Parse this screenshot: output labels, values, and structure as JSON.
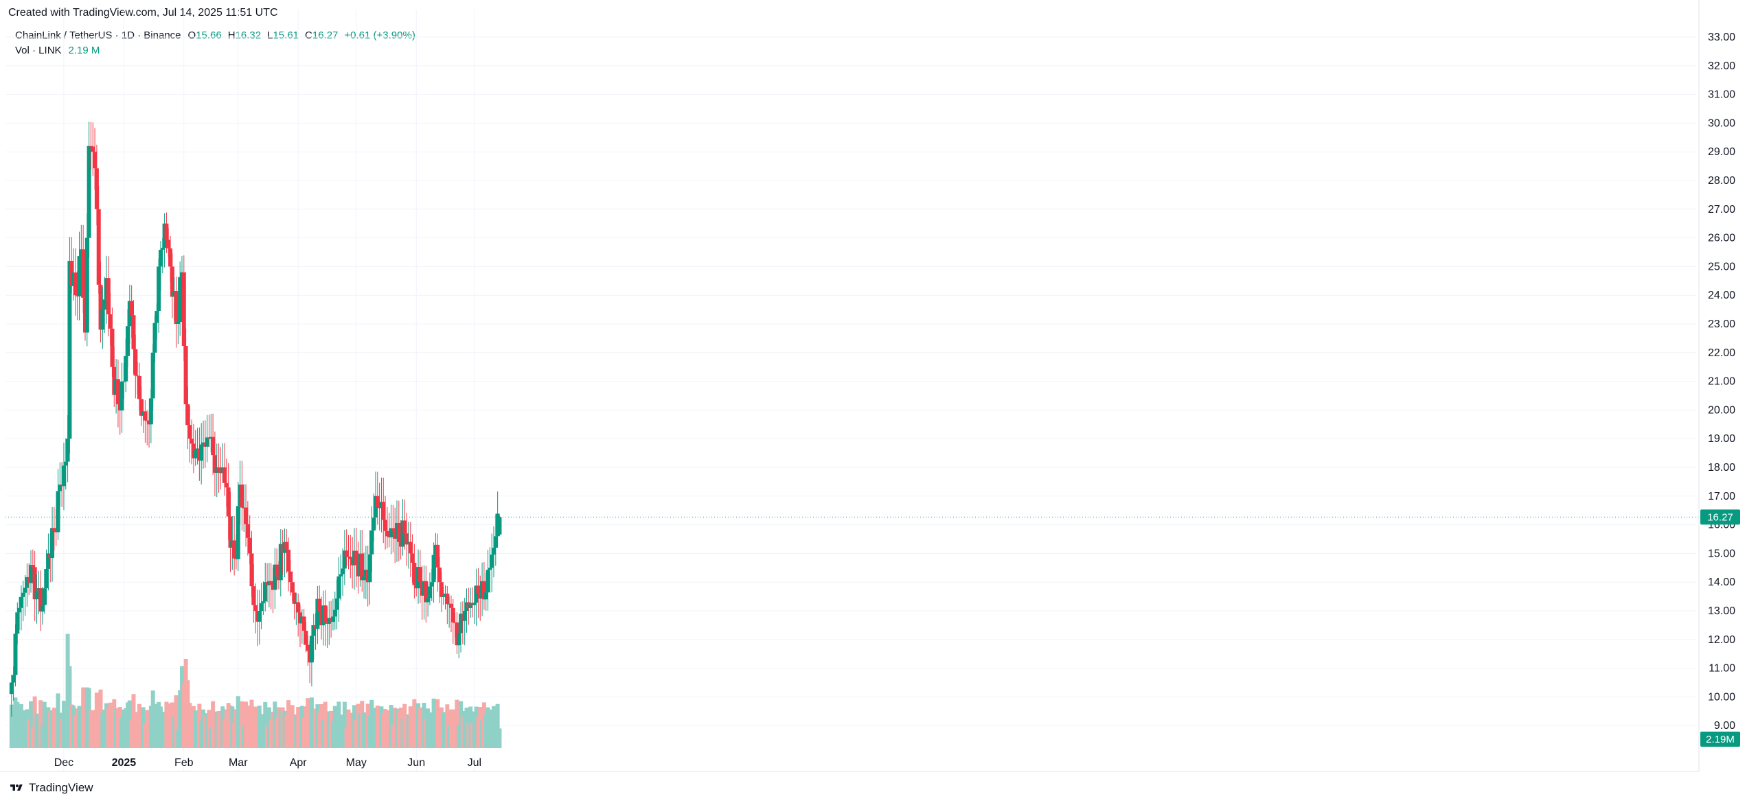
{
  "header": {
    "created": "Created with TradingView.com, Jul 14, 2025 11:51 UTC"
  },
  "legend": {
    "symbol": "ChainLink / TetherUS · 1D · Binance",
    "o_label": "O",
    "o_value": "15.66",
    "h_label": "H",
    "h_value": "16.32",
    "l_label": "L",
    "l_value": "15.61",
    "c_label": "C",
    "c_value": "16.27",
    "change": "+0.61 (+3.90%)",
    "vol_label": "Vol · LINK",
    "vol_value": "2.19 M"
  },
  "footer": {
    "brand": "TradingView",
    "logo_icon": "tradingview-logo-icon"
  },
  "colors": {
    "up": "#089981",
    "down": "#f23645",
    "up_vol": "#8fd1c7",
    "down_vol": "#f7a9a7",
    "grid": "#f0f3fa",
    "text": "#131722"
  },
  "chart_data": {
    "type": "candlestick",
    "title": "ChainLink / TetherUS · 1D · Binance",
    "interval": "1D",
    "exchange": "Binance",
    "x_tick_labels": [
      "Dec",
      "2025",
      "Feb",
      "Mar",
      "Apr",
      "May",
      "Jun",
      "Jul"
    ],
    "x_tick_dates": [
      "2024-12-01",
      "2025-01-01",
      "2025-02-01",
      "2025-03-01",
      "2025-04-01",
      "2025-05-01",
      "2025-06-01",
      "2025-07-01"
    ],
    "y_axis": {
      "min": 9,
      "max": 33,
      "ticks": [
        "9.00",
        "10.00",
        "11.00",
        "12.00",
        "13.00",
        "14.00",
        "15.00",
        "16.00",
        "17.00",
        "18.00",
        "19.00",
        "20.00",
        "21.00",
        "22.00",
        "23.00",
        "24.00",
        "25.00",
        "26.00",
        "27.00",
        "28.00",
        "29.00",
        "30.00",
        "31.00",
        "32.00",
        "33.00"
      ]
    },
    "last_price": "16.27",
    "last_volume": "2.19M",
    "grid": true,
    "approx_close_by_date": [
      [
        "2024-11-04",
        10.5
      ],
      [
        "2024-11-06",
        12.2
      ],
      [
        "2024-11-08",
        13.1
      ],
      [
        "2024-11-11",
        13.8
      ],
      [
        "2024-11-14",
        14.6
      ],
      [
        "2024-11-17",
        13.7
      ],
      [
        "2024-11-20",
        13.2
      ],
      [
        "2024-11-23",
        15.0
      ],
      [
        "2024-11-26",
        15.8
      ],
      [
        "2024-11-29",
        17.4
      ],
      [
        "2024-12-02",
        18.2
      ],
      [
        "2024-12-03",
        19.0
      ],
      [
        "2024-12-04",
        25.2
      ],
      [
        "2024-12-07",
        24.0
      ],
      [
        "2024-12-10",
        25.6
      ],
      [
        "2024-12-12",
        22.7
      ],
      [
        "2024-12-13",
        26.0
      ],
      [
        "2024-12-14",
        29.2
      ],
      [
        "2024-12-16",
        29.0
      ],
      [
        "2024-12-18",
        27.0
      ],
      [
        "2024-12-20",
        22.8
      ],
      [
        "2024-12-23",
        24.6
      ],
      [
        "2024-12-26",
        21.5
      ],
      [
        "2024-12-29",
        20.2
      ],
      [
        "2025-01-01",
        21.0
      ],
      [
        "2025-01-04",
        23.8
      ],
      [
        "2025-01-07",
        21.2
      ],
      [
        "2025-01-10",
        19.8
      ],
      [
        "2025-01-14",
        19.5
      ],
      [
        "2025-01-16",
        22.0
      ],
      [
        "2025-01-19",
        25.0
      ],
      [
        "2025-01-22",
        26.5
      ],
      [
        "2025-01-25",
        25.0
      ],
      [
        "2025-01-28",
        23.0
      ],
      [
        "2025-01-31",
        24.8
      ],
      [
        "2025-02-02",
        20.2
      ],
      [
        "2025-02-04",
        19.0
      ],
      [
        "2025-02-07",
        18.6
      ],
      [
        "2025-02-10",
        18.8
      ],
      [
        "2025-02-14",
        19.0
      ],
      [
        "2025-02-18",
        18.0
      ],
      [
        "2025-02-20",
        17.8
      ],
      [
        "2025-02-23",
        17.3
      ],
      [
        "2025-02-25",
        15.2
      ],
      [
        "2025-02-28",
        14.8
      ],
      [
        "2025-03-02",
        17.4
      ],
      [
        "2025-03-04",
        16.6
      ],
      [
        "2025-03-07",
        15.0
      ],
      [
        "2025-03-09",
        13.2
      ],
      [
        "2025-03-12",
        13.0
      ],
      [
        "2025-03-15",
        14.0
      ],
      [
        "2025-03-18",
        13.9
      ],
      [
        "2025-03-21",
        14.2
      ],
      [
        "2025-03-25",
        15.4
      ],
      [
        "2025-03-28",
        14.0
      ],
      [
        "2025-03-31",
        13.3
      ],
      [
        "2025-04-03",
        12.8
      ],
      [
        "2025-04-06",
        11.6
      ],
      [
        "2025-04-07",
        11.2
      ],
      [
        "2025-04-09",
        12.5
      ],
      [
        "2025-04-12",
        13.0
      ],
      [
        "2025-04-15",
        12.6
      ],
      [
        "2025-04-19",
        12.8
      ],
      [
        "2025-04-22",
        14.2
      ],
      [
        "2025-04-25",
        15.1
      ],
      [
        "2025-04-28",
        14.8
      ],
      [
        "2025-05-01",
        14.6
      ],
      [
        "2025-05-05",
        14.2
      ],
      [
        "2025-05-07",
        14.0
      ],
      [
        "2025-05-09",
        15.8
      ],
      [
        "2025-05-11",
        17.0
      ],
      [
        "2025-05-14",
        16.8
      ],
      [
        "2025-05-17",
        15.6
      ],
      [
        "2025-05-20",
        15.8
      ],
      [
        "2025-05-23",
        15.4
      ],
      [
        "2025-05-26",
        15.7
      ],
      [
        "2025-05-29",
        15.0
      ],
      [
        "2025-05-31",
        13.9
      ],
      [
        "2025-06-03",
        14.0
      ],
      [
        "2025-06-06",
        13.3
      ],
      [
        "2025-06-09",
        14.0
      ],
      [
        "2025-06-11",
        15.3
      ],
      [
        "2025-06-13",
        14.0
      ],
      [
        "2025-06-16",
        13.6
      ],
      [
        "2025-06-19",
        13.1
      ],
      [
        "2025-06-22",
        11.8
      ],
      [
        "2025-06-24",
        12.9
      ],
      [
        "2025-06-27",
        13.3
      ],
      [
        "2025-06-30",
        13.2
      ],
      [
        "2025-07-03",
        13.6
      ],
      [
        "2025-07-06",
        13.4
      ],
      [
        "2025-07-09",
        14.5
      ],
      [
        "2025-07-11",
        15.2
      ],
      [
        "2025-07-12",
        15.6
      ],
      [
        "2025-07-14",
        16.27
      ]
    ]
  }
}
